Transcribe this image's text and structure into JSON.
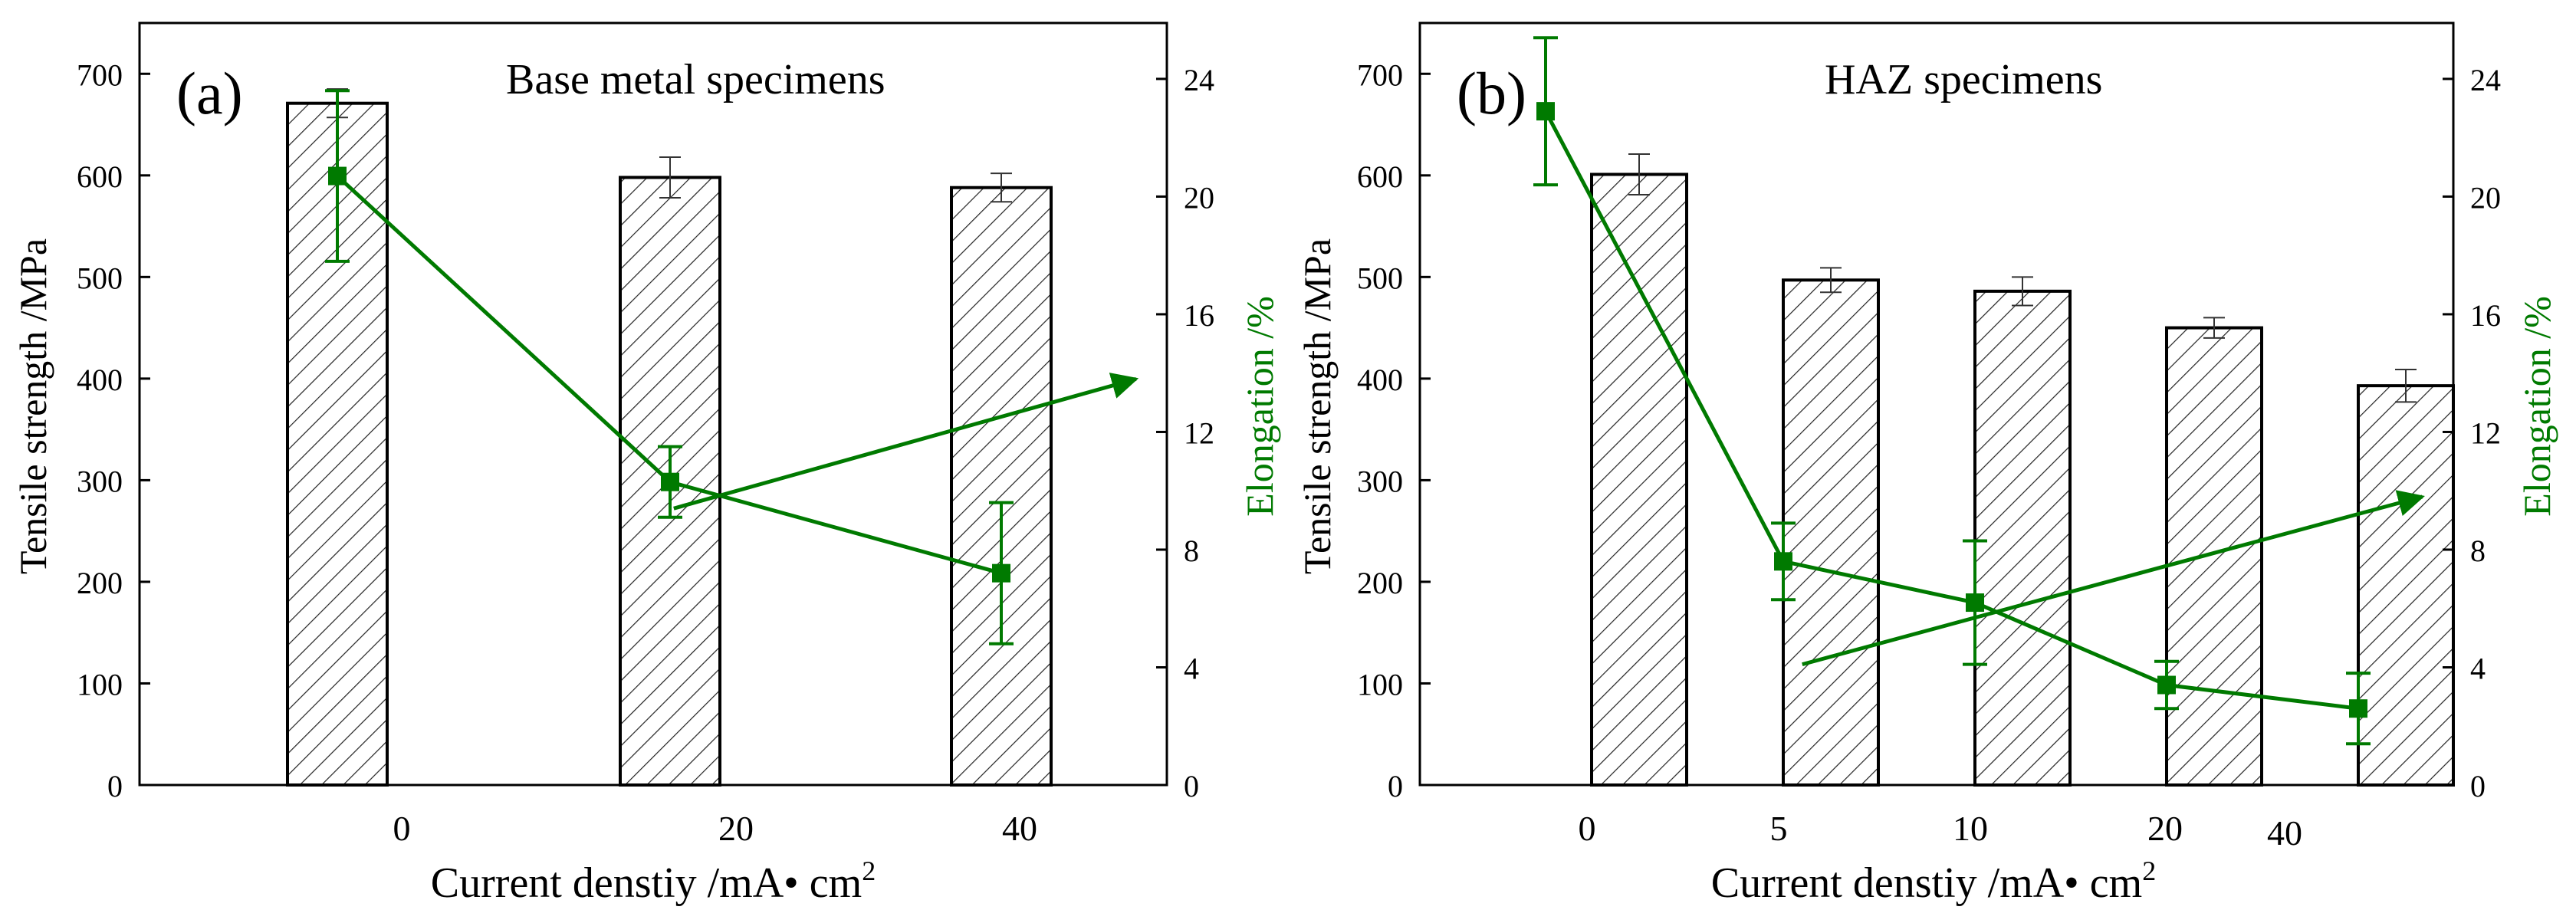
{
  "colors": {
    "bar": "#000000",
    "line": "#007a00",
    "axis": "#000000"
  },
  "chart_data": [
    {
      "type": "bar",
      "panel_label": "(a)",
      "title": "Base metal specimens",
      "xlabel": "Current denstiy /mA• cm",
      "xlabel_sup": "2",
      "ylabel": "Tensile strength /MPa",
      "y2label": "Elongation /%",
      "categories": [
        "0",
        "20",
        "40"
      ],
      "ylim": [
        0,
        750
      ],
      "y2lim": [
        0,
        25.9
      ],
      "yticks": [
        0,
        100,
        200,
        300,
        400,
        500,
        600,
        700
      ],
      "y2ticks": [
        0,
        4,
        8,
        12,
        16,
        20,
        24
      ],
      "series": [
        {
          "name": "Tensile strength",
          "axis": "left",
          "kind": "bar",
          "values": [
            671,
            598,
            588
          ],
          "errors": [
            14,
            20,
            14
          ]
        },
        {
          "name": "Elongation",
          "axis": "right",
          "kind": "line",
          "values": [
            20.7,
            10.3,
            7.2
          ],
          "errors": [
            2.9,
            1.2,
            2.4
          ]
        }
      ],
      "annotations": [
        {
          "type": "arrow",
          "from": [
            26,
            9.4
          ],
          "to": [
            48.5,
            13.8
          ],
          "points_to": "right-axis"
        }
      ]
    },
    {
      "type": "bar",
      "panel_label": "(b)",
      "title": "HAZ specimens",
      "xlabel": "Current denstiy /mA• cm",
      "xlabel_sup": "2",
      "ylabel": "Tensile strength /MPa",
      "y2label": "Elongation /%",
      "categories": [
        "0",
        "5",
        "10",
        "20",
        "40"
      ],
      "ylim": [
        0,
        750
      ],
      "y2lim": [
        0,
        25.9
      ],
      "yticks": [
        0,
        100,
        200,
        300,
        400,
        500,
        600,
        700
      ],
      "y2ticks": [
        0,
        4,
        8,
        12,
        16,
        20,
        24
      ],
      "series": [
        {
          "name": "Tensile strength",
          "axis": "left",
          "kind": "bar",
          "values": [
            601,
            497,
            486,
            450,
            393
          ],
          "errors": [
            20,
            12,
            14,
            10,
            16
          ]
        },
        {
          "name": "Elongation",
          "axis": "right",
          "kind": "line",
          "values": [
            22.9,
            7.6,
            6.2,
            3.4,
            2.6
          ],
          "errors": [
            2.5,
            1.3,
            2.1,
            0.8,
            1.2
          ]
        }
      ],
      "annotations": [
        {
          "type": "arrow",
          "from": [
            18.5,
            4.1
          ],
          "to": [
            48.5,
            9.8
          ],
          "points_to": "right-axis"
        }
      ]
    }
  ]
}
